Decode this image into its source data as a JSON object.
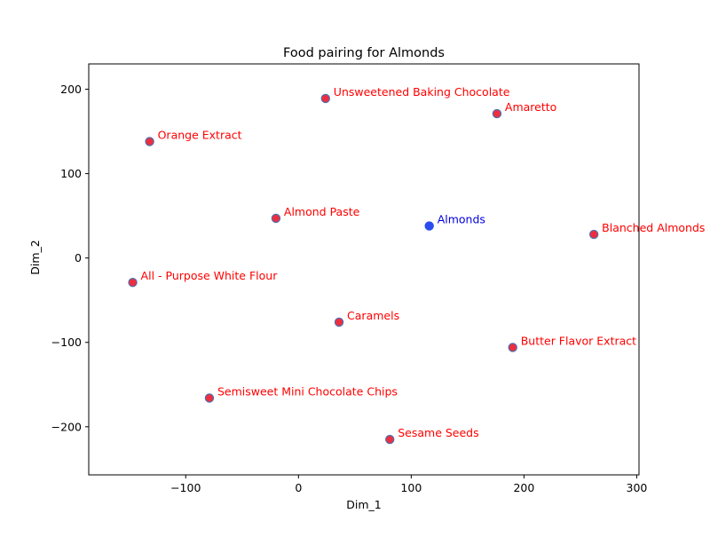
{
  "chart_data": {
    "type": "scatter",
    "title": "Food pairing for Almonds",
    "xlabel": "Dim_1",
    "ylabel": "Dim_2",
    "xlim": [
      -186,
      302
    ],
    "ylim": [
      -257,
      230
    ],
    "xticks": [
      -100,
      0,
      100,
      200,
      300
    ],
    "yticks": [
      -200,
      -100,
      0,
      100,
      200
    ],
    "xtick_labels": [
      "−100",
      "0",
      "100",
      "200",
      "300"
    ],
    "ytick_labels": [
      "−200",
      "−100",
      "0",
      "100",
      "200"
    ],
    "grid": false,
    "colors": {
      "pairing_point": "#ee2e3e",
      "pairing_edge": "#4f6fb0",
      "pairing_label": "#ff0000",
      "target_point": "#2a4df0",
      "target_label": "#0000dd",
      "axis": "#000000"
    },
    "points": [
      {
        "name": "Unsweetened Baking Chocolate",
        "x": 24,
        "y": 189,
        "kind": "pairing"
      },
      {
        "name": "Amaretto",
        "x": 176,
        "y": 171,
        "kind": "pairing"
      },
      {
        "name": "Orange Extract",
        "x": -132,
        "y": 138,
        "kind": "pairing"
      },
      {
        "name": "Almond Paste",
        "x": -20,
        "y": 47,
        "kind": "pairing"
      },
      {
        "name": "Almonds",
        "x": 116,
        "y": 38,
        "kind": "target"
      },
      {
        "name": "Blanched Almonds",
        "x": 262,
        "y": 28,
        "kind": "pairing"
      },
      {
        "name": "All - Purpose White Flour",
        "x": -147,
        "y": -29,
        "kind": "pairing"
      },
      {
        "name": "Caramels",
        "x": 36,
        "y": -76,
        "kind": "pairing"
      },
      {
        "name": "Butter Flavor Extract",
        "x": 190,
        "y": -106,
        "kind": "pairing"
      },
      {
        "name": "Semisweet Mini Chocolate Chips",
        "x": -79,
        "y": -166,
        "kind": "pairing"
      },
      {
        "name": "Sesame Seeds",
        "x": 81,
        "y": -215,
        "kind": "pairing"
      }
    ]
  }
}
